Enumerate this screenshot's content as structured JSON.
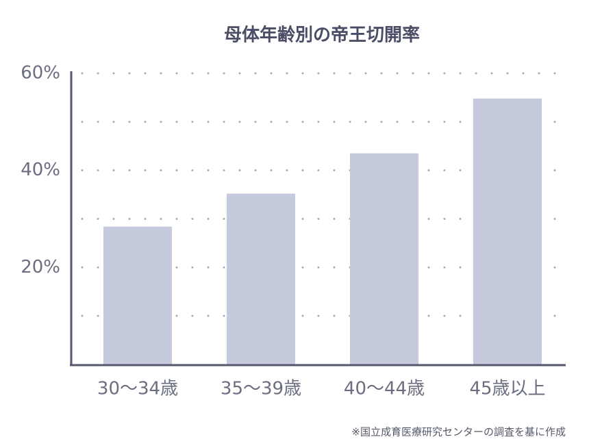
{
  "chart_data": {
    "type": "bar",
    "title": "母体年齢別の帝王切開率",
    "categories": [
      "30〜34歳",
      "35〜39歳",
      "40〜44歳",
      "45歳以上"
    ],
    "values": [
      28.4,
      35.2,
      43.5,
      54.8
    ],
    "color": "#c5cbdc",
    "ylim": [
      0,
      60
    ],
    "yticks": [
      {
        "value": 10,
        "label": null
      },
      {
        "value": 20,
        "label": "20%"
      },
      {
        "value": 30,
        "label": null
      },
      {
        "value": 40,
        "label": "40%"
      },
      {
        "value": 50,
        "label": null
      },
      {
        "value": 60,
        "label": "60%"
      }
    ],
    "grid": true,
    "note": "※国立成育医療研究センターの調査を基に作成"
  }
}
